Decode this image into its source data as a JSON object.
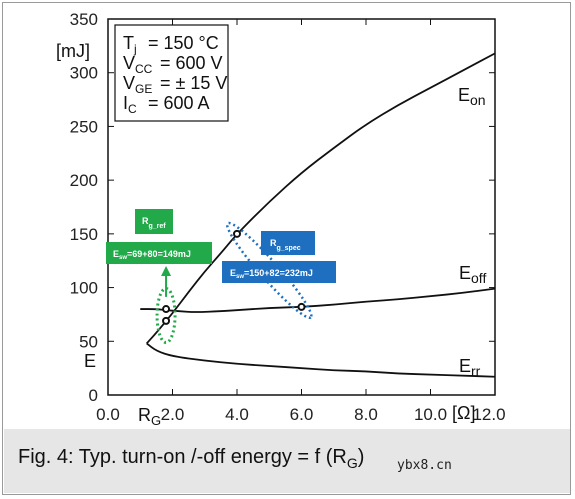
{
  "chart_data": {
    "type": "line",
    "xlim": [
      0,
      12
    ],
    "ylim": [
      0,
      350
    ],
    "x_ticks": [
      "0.0",
      "2.0",
      "4.0",
      "6.0",
      "8.0",
      "10.0",
      "12.0"
    ],
    "y_ticks": [
      "0",
      "50",
      "100",
      "150",
      "200",
      "250",
      "300",
      "350"
    ],
    "x_unit": "[Ω]",
    "y_unit": "[mJ]",
    "x_symbol": "R",
    "x_symbol_sub": "G",
    "y_symbol": "E",
    "grid": false,
    "series": [
      {
        "name": "E",
        "name_sub": "on",
        "x": [
          1.2,
          1.5,
          2.0,
          2.5,
          3.0,
          3.5,
          4.0,
          5.0,
          6.0,
          7.0,
          8.0,
          9.0,
          10.0,
          11.0,
          12.0
        ],
        "y": [
          48,
          58,
          76,
          96,
          115,
          132,
          150,
          180,
          207,
          230,
          252,
          270,
          286,
          302,
          318
        ]
      },
      {
        "name": "E",
        "name_sub": "off",
        "x": [
          1.0,
          1.5,
          1.8,
          2.2,
          2.7,
          3.5,
          4.0,
          5.0,
          6.0,
          7.0,
          8.0,
          9.0,
          10.0,
          11.0,
          12.0
        ],
        "y": [
          80,
          80,
          79,
          78,
          77,
          78,
          79,
          81,
          82,
          84,
          87,
          89,
          92,
          95,
          99
        ]
      },
      {
        "name": "E",
        "name_sub": "rr",
        "x": [
          1.2,
          1.5,
          2.0,
          3.0,
          4.0,
          5.0,
          6.0,
          7.0,
          8.0,
          9.0,
          10.0,
          11.0,
          12.0
        ],
        "y": [
          48,
          41,
          36,
          32,
          29,
          27,
          25,
          23,
          22,
          20,
          19,
          18,
          17
        ]
      }
    ],
    "markers": [
      {
        "x": 1.8,
        "y": 80
      },
      {
        "x": 1.8,
        "y": 69
      },
      {
        "x": 4.0,
        "y": 150
      },
      {
        "x": 6.0,
        "y": 82
      }
    ],
    "conditions": [
      {
        "sym": "T",
        "sub": "j",
        "val": "= 150 °C"
      },
      {
        "sym": "V",
        "sub": "CC",
        "val": "= 600 V"
      },
      {
        "sym": "V",
        "sub": "GE",
        "val": "= ± 15 V"
      },
      {
        "sym": "I",
        "sub": "C",
        "val": "= 600 A"
      }
    ],
    "annotations": {
      "ref": {
        "label": "R",
        "label_sub": "g_ref",
        "formula_sym": "E",
        "formula_sub": "sw",
        "formula_val": "=69+80=149mJ",
        "color": "#22a94a"
      },
      "spec": {
        "label": "R",
        "label_sub": "g_spec",
        "formula_sym": "E",
        "formula_sub": "sw",
        "formula_val": "=150+82=232mJ",
        "color": "#1e6fc0"
      }
    }
  },
  "caption": {
    "main": "Fig. 4: Typ. turn-on /-off energy = f (R",
    "sub": "G",
    "close": ")"
  },
  "watermark": "ybx8.cn"
}
